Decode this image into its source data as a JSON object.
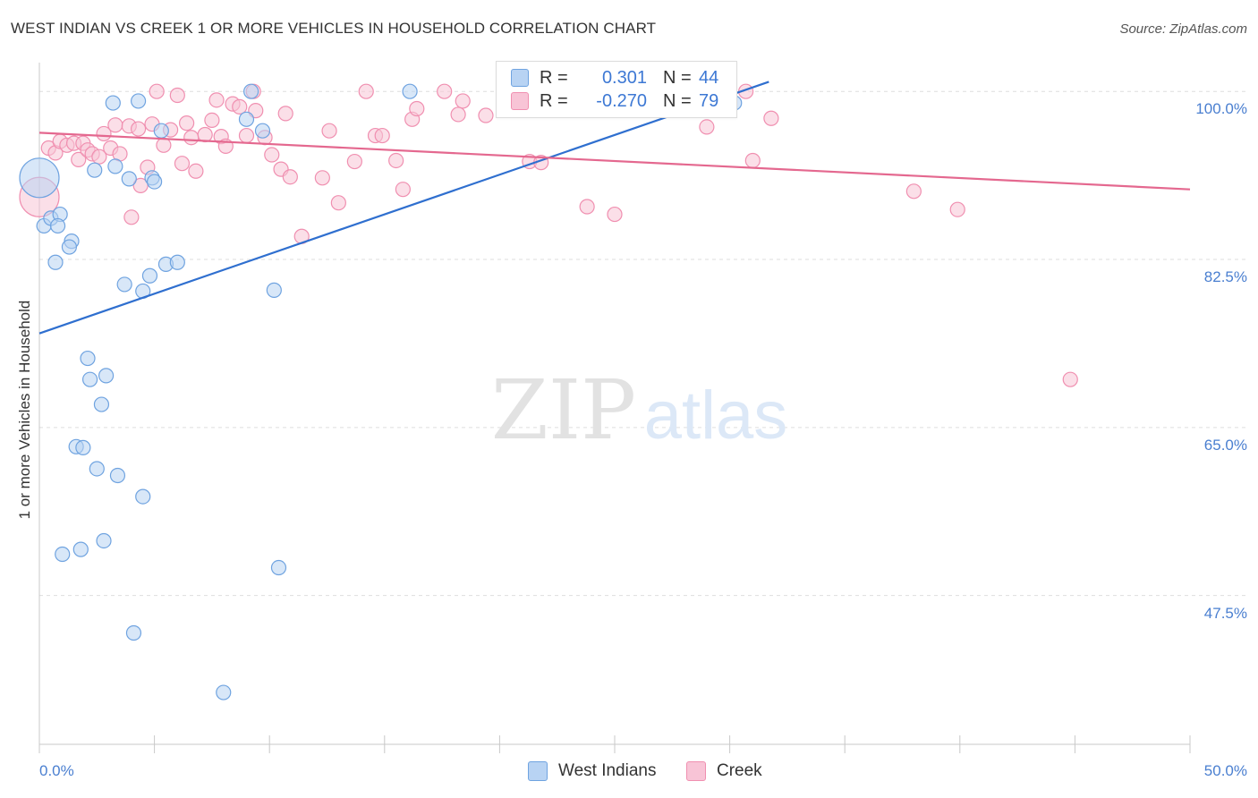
{
  "chart_data": {
    "type": "scatter",
    "title": "WEST INDIAN VS CREEK 1 OR MORE VEHICLES IN HOUSEHOLD CORRELATION CHART",
    "source": "Source: ZipAtlas.com",
    "xlabel": "",
    "ylabel": "1 or more Vehicles in Household",
    "xlim": [
      0,
      50
    ],
    "ylim": [
      32.0,
      103.0
    ],
    "x_tick_labels": [
      "0.0%",
      "50.0%"
    ],
    "y_ticks": [
      {
        "value": 100.0,
        "label": "100.0%"
      },
      {
        "value": 82.5,
        "label": "82.5%"
      },
      {
        "value": 65.0,
        "label": "65.0%"
      },
      {
        "value": 47.5,
        "label": "47.5%"
      }
    ],
    "grid": true,
    "legend_position": "top-center",
    "watermark": "ZIPatlas",
    "series": [
      {
        "name": "West Indians",
        "color": "#6fa3e0",
        "fill": "#b8d3f3",
        "R": "0.301",
        "N": "44",
        "trend": {
          "x": [
            0.0,
            31.7
          ],
          "y": [
            74.8,
            101.0
          ]
        },
        "points": [
          {
            "x": 0.0,
            "y": 91.0,
            "big": true
          },
          {
            "x": 0.2,
            "y": 86.0
          },
          {
            "x": 0.5,
            "y": 86.8
          },
          {
            "x": 0.9,
            "y": 87.2
          },
          {
            "x": 0.8,
            "y": 86.0
          },
          {
            "x": 1.4,
            "y": 84.4
          },
          {
            "x": 1.3,
            "y": 83.8
          },
          {
            "x": 0.7,
            "y": 82.2
          },
          {
            "x": 3.2,
            "y": 98.8
          },
          {
            "x": 4.3,
            "y": 99.0
          },
          {
            "x": 2.4,
            "y": 91.8
          },
          {
            "x": 3.3,
            "y": 92.2
          },
          {
            "x": 3.9,
            "y": 90.9
          },
          {
            "x": 4.9,
            "y": 91.0
          },
          {
            "x": 5.0,
            "y": 90.6
          },
          {
            "x": 5.3,
            "y": 95.9
          },
          {
            "x": 9.2,
            "y": 100.0
          },
          {
            "x": 16.1,
            "y": 100.0
          },
          {
            "x": 30.2,
            "y": 98.8
          },
          {
            "x": 9.0,
            "y": 97.1
          },
          {
            "x": 9.7,
            "y": 95.9
          },
          {
            "x": 3.7,
            "y": 79.9
          },
          {
            "x": 4.5,
            "y": 79.2
          },
          {
            "x": 4.8,
            "y": 80.8
          },
          {
            "x": 5.5,
            "y": 82.0
          },
          {
            "x": 6.0,
            "y": 82.2
          },
          {
            "x": 10.2,
            "y": 79.3
          },
          {
            "x": 2.1,
            "y": 72.2
          },
          {
            "x": 2.2,
            "y": 70.0
          },
          {
            "x": 2.9,
            "y": 70.4
          },
          {
            "x": 2.7,
            "y": 67.4
          },
          {
            "x": 1.6,
            "y": 63.0
          },
          {
            "x": 1.9,
            "y": 62.9
          },
          {
            "x": 2.5,
            "y": 60.7
          },
          {
            "x": 3.4,
            "y": 60.0
          },
          {
            "x": 4.5,
            "y": 57.8
          },
          {
            "x": 1.0,
            "y": 51.8
          },
          {
            "x": 1.8,
            "y": 52.3
          },
          {
            "x": 2.8,
            "y": 53.2
          },
          {
            "x": 10.4,
            "y": 50.4
          },
          {
            "x": 4.1,
            "y": 43.6
          },
          {
            "x": 8.0,
            "y": 37.4
          }
        ]
      },
      {
        "name": "Creek",
        "color": "#f08fb0",
        "fill": "#f8c4d6",
        "R": "-0.270",
        "N": "79",
        "trend": {
          "x": [
            0.0,
            50.0
          ],
          "y": [
            95.7,
            89.8
          ]
        },
        "points": [
          {
            "x": 0.0,
            "y": 89.0,
            "big": true
          },
          {
            "x": 0.4,
            "y": 94.1
          },
          {
            "x": 0.7,
            "y": 93.6
          },
          {
            "x": 0.9,
            "y": 94.8
          },
          {
            "x": 1.2,
            "y": 94.4
          },
          {
            "x": 1.5,
            "y": 94.6
          },
          {
            "x": 1.7,
            "y": 92.9
          },
          {
            "x": 1.9,
            "y": 94.6
          },
          {
            "x": 2.1,
            "y": 93.9
          },
          {
            "x": 2.3,
            "y": 93.5
          },
          {
            "x": 2.6,
            "y": 93.2
          },
          {
            "x": 2.8,
            "y": 95.6
          },
          {
            "x": 3.1,
            "y": 94.1
          },
          {
            "x": 3.3,
            "y": 96.5
          },
          {
            "x": 3.5,
            "y": 93.5
          },
          {
            "x": 3.9,
            "y": 96.4
          },
          {
            "x": 4.0,
            "y": 86.9
          },
          {
            "x": 4.3,
            "y": 96.1
          },
          {
            "x": 4.4,
            "y": 90.2
          },
          {
            "x": 4.7,
            "y": 92.1
          },
          {
            "x": 4.9,
            "y": 96.6
          },
          {
            "x": 5.1,
            "y": 100.0
          },
          {
            "x": 5.4,
            "y": 94.4
          },
          {
            "x": 5.7,
            "y": 96.0
          },
          {
            "x": 6.0,
            "y": 99.6
          },
          {
            "x": 6.2,
            "y": 92.5
          },
          {
            "x": 6.4,
            "y": 96.7
          },
          {
            "x": 6.6,
            "y": 95.2
          },
          {
            "x": 6.8,
            "y": 91.7
          },
          {
            "x": 7.2,
            "y": 95.5
          },
          {
            "x": 7.5,
            "y": 97.0
          },
          {
            "x": 7.7,
            "y": 99.1
          },
          {
            "x": 7.9,
            "y": 95.3
          },
          {
            "x": 8.1,
            "y": 94.3
          },
          {
            "x": 8.4,
            "y": 98.7
          },
          {
            "x": 8.7,
            "y": 98.4
          },
          {
            "x": 9.0,
            "y": 95.4
          },
          {
            "x": 9.4,
            "y": 98.0
          },
          {
            "x": 9.8,
            "y": 95.2
          },
          {
            "x": 10.1,
            "y": 93.4
          },
          {
            "x": 10.5,
            "y": 91.9
          },
          {
            "x": 10.7,
            "y": 97.7
          },
          {
            "x": 10.9,
            "y": 91.1
          },
          {
            "x": 9.3,
            "y": 100.0
          },
          {
            "x": 11.4,
            "y": 84.9
          },
          {
            "x": 12.3,
            "y": 91.0
          },
          {
            "x": 12.6,
            "y": 95.9
          },
          {
            "x": 13.0,
            "y": 88.4
          },
          {
            "x": 13.7,
            "y": 92.7
          },
          {
            "x": 14.2,
            "y": 100.0
          },
          {
            "x": 14.6,
            "y": 95.4
          },
          {
            "x": 14.9,
            "y": 95.4
          },
          {
            "x": 15.5,
            "y": 92.8
          },
          {
            "x": 15.8,
            "y": 89.8
          },
          {
            "x": 16.2,
            "y": 97.1
          },
          {
            "x": 16.4,
            "y": 98.2
          },
          {
            "x": 17.6,
            "y": 100.0
          },
          {
            "x": 18.2,
            "y": 97.6
          },
          {
            "x": 18.4,
            "y": 99.0
          },
          {
            "x": 19.4,
            "y": 97.5
          },
          {
            "x": 20.4,
            "y": 98.9
          },
          {
            "x": 21.3,
            "y": 92.7
          },
          {
            "x": 21.8,
            "y": 92.6
          },
          {
            "x": 23.8,
            "y": 88.0
          },
          {
            "x": 25.0,
            "y": 87.2
          },
          {
            "x": 29.0,
            "y": 96.3
          },
          {
            "x": 30.7,
            "y": 100.0
          },
          {
            "x": 31.0,
            "y": 92.8
          },
          {
            "x": 31.8,
            "y": 97.2
          },
          {
            "x": 38.0,
            "y": 89.6
          },
          {
            "x": 39.9,
            "y": 87.7
          },
          {
            "x": 44.8,
            "y": 70.0
          }
        ]
      }
    ]
  },
  "legend": {
    "r_label": "R =",
    "n_label": "N =",
    "west_indians": {
      "r": "0.301",
      "n": "44"
    },
    "creek": {
      "r": "-0.270",
      "n": "79"
    }
  },
  "bottom_legend": [
    "West Indians",
    "Creek"
  ]
}
